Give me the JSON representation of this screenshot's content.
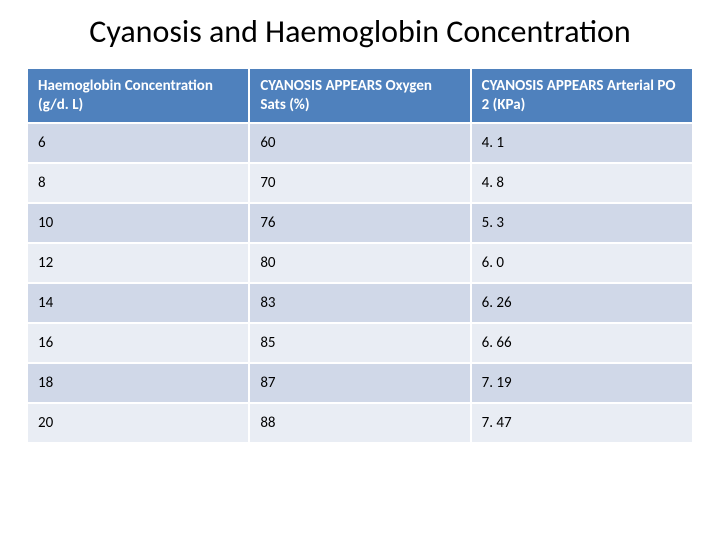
{
  "title": "Cyanosis and Haemoglobin Concentration",
  "title_fontsize": 32,
  "title_color": "#000000",
  "table": {
    "type": "table",
    "header_bg": "#4f81bd",
    "header_text_color": "#ffffff",
    "row_alt_bg_light": "#e9edf4",
    "row_alt_bg_dark": "#d0d8e8",
    "cell_text_color": "#000000",
    "cell_border_color": "#ffffff",
    "header_fontsize": 15,
    "cell_fontsize": 15,
    "columns": [
      "Haemoglobin Concentration (g/d. L)",
      "CYANOSIS APPEARS Oxygen Sats  (%)",
      "CYANOSIS APPEARS Arterial PO 2 (KPa)"
    ],
    "rows": [
      [
        "6",
        "60",
        "4. 1"
      ],
      [
        "8",
        "70",
        "4. 8"
      ],
      [
        "10",
        "76",
        "5. 3"
      ],
      [
        "12",
        "80",
        "6. 0"
      ],
      [
        "14",
        "83",
        "6. 26"
      ],
      [
        "16",
        "85",
        "6. 66"
      ],
      [
        "18",
        "87",
        "7. 19"
      ],
      [
        "20",
        "88",
        "7. 47"
      ]
    ]
  },
  "background_color": "#ffffff"
}
